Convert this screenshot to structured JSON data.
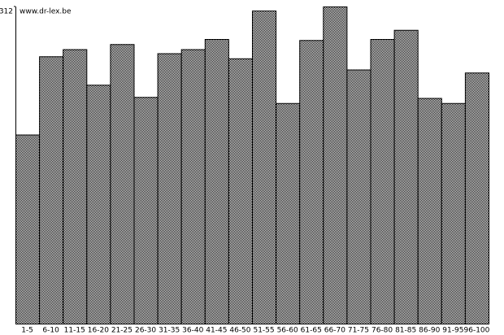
{
  "chart_data": {
    "type": "bar",
    "annotation": "www.dr-lex.be",
    "categories": [
      "1-5",
      "6-10",
      "11-15",
      "16-20",
      "21-25",
      "26-30",
      "31-35",
      "36-40",
      "41-45",
      "46-50",
      "51-55",
      "56-60",
      "61-65",
      "66-70",
      "71-75",
      "76-80",
      "81-85",
      "86-90",
      "91-95",
      "96-100"
    ],
    "values": [
      186,
      263,
      270,
      235,
      275,
      223,
      266,
      270,
      280,
      261,
      308,
      217,
      279,
      312,
      250,
      280,
      289,
      222,
      217,
      247
    ],
    "color": "#000000",
    "ylim": [
      0,
      312
    ],
    "yticks": [
      312
    ],
    "grid": false
  }
}
